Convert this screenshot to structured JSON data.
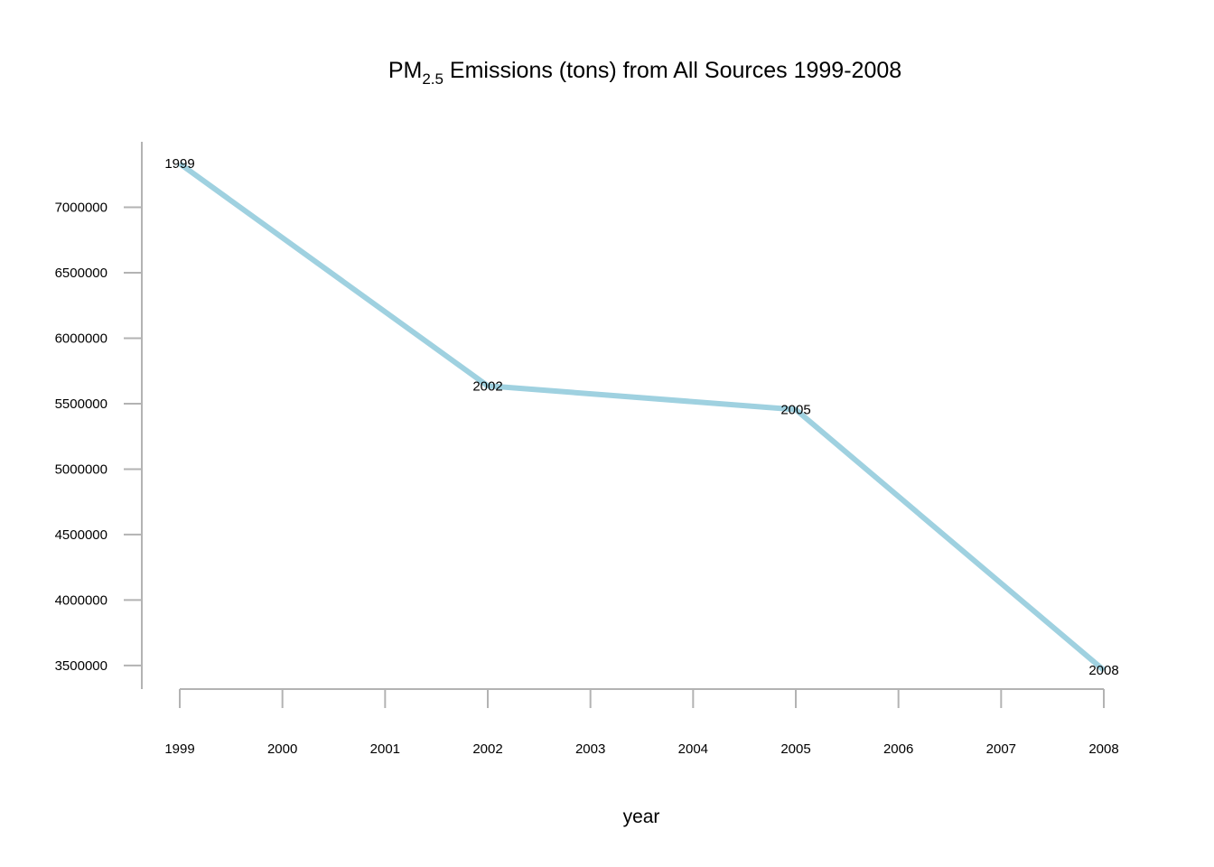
{
  "chart_data": {
    "type": "line",
    "title_prefix": "PM",
    "title_subscript": "2.5",
    "title_rest": " Emissions (tons) from All Sources 1999-2008",
    "xlabel": "year",
    "ylabel": "",
    "x_ticks": [
      "1999",
      "2000",
      "2001",
      "2002",
      "2003",
      "2004",
      "2005",
      "2006",
      "2007",
      "2008"
    ],
    "y_ticks": [
      "3500000",
      "4000000",
      "4500000",
      "5000000",
      "5500000",
      "6000000",
      "6500000",
      "7000000"
    ],
    "xlim": [
      1999,
      2008
    ],
    "ylim": [
      3320000,
      7500000
    ],
    "series": [
      {
        "x": [
          1999,
          2002,
          2005,
          2008
        ],
        "values": [
          7332967,
          5635780,
          5454703,
          3464206
        ],
        "point_labels": [
          "1999",
          "2002",
          "2005",
          "2008"
        ]
      }
    ],
    "line_color": "#9fd1e0",
    "axis_color": "#b3b3b3",
    "grid": false,
    "legend": "none"
  }
}
